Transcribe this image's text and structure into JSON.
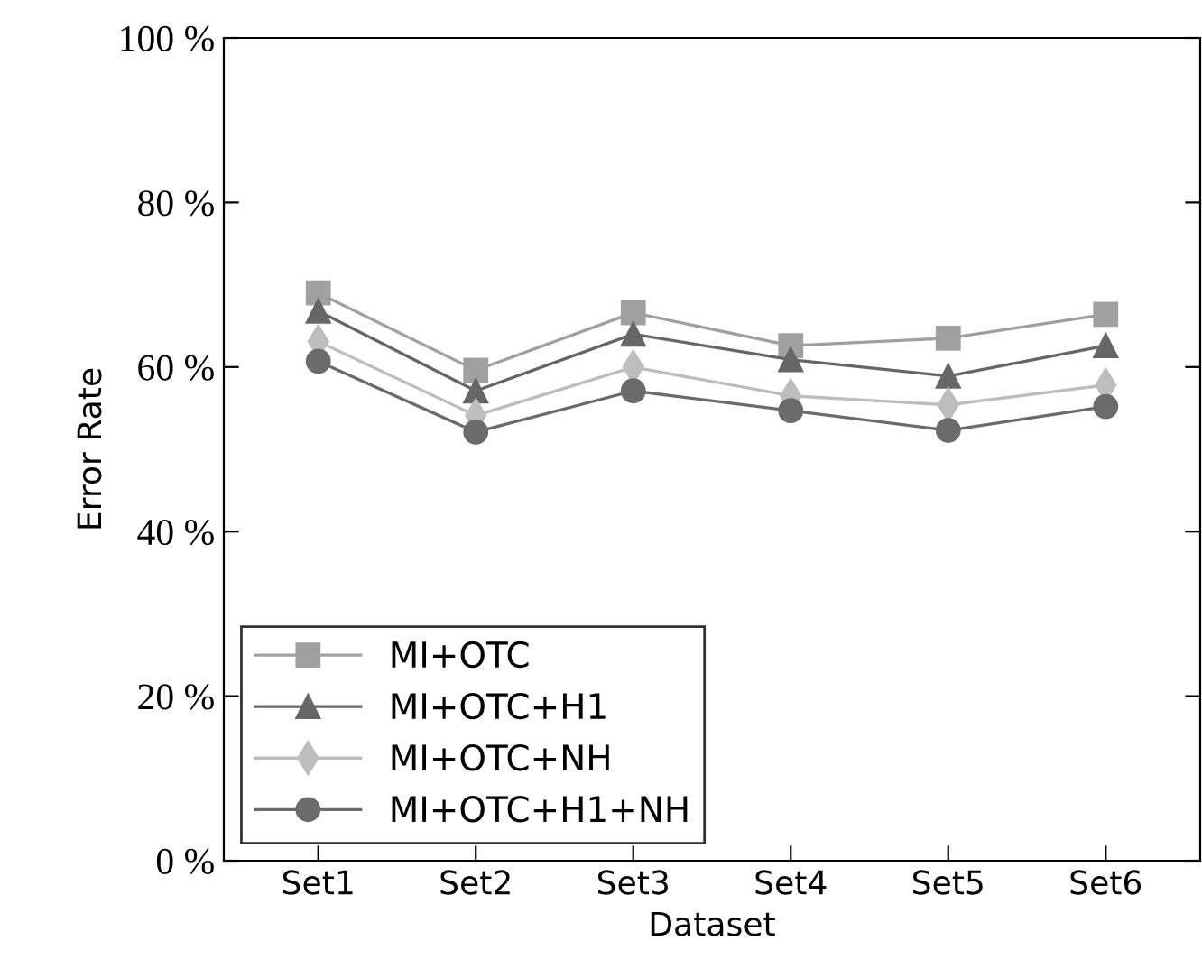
{
  "chart_data": {
    "type": "line",
    "xlabel": "Dataset",
    "ylabel": "Error Rate",
    "categories": [
      "Set1",
      "Set2",
      "Set3",
      "Set4",
      "Set5",
      "Set6"
    ],
    "series": [
      {
        "name": "MI+OTC",
        "color": "#a0a0a0",
        "marker": "square",
        "values": [
          69.0,
          59.6,
          66.6,
          62.6,
          63.5,
          66.4
        ]
      },
      {
        "name": "MI+OTC+H1",
        "color": "#666666",
        "marker": "triangle",
        "values": [
          66.8,
          57.1,
          64.0,
          60.9,
          58.9,
          62.6
        ]
      },
      {
        "name": "MI+OTC+NH",
        "color": "#bdbdbd",
        "marker": "diamond",
        "values": [
          63.1,
          54.1,
          60.0,
          56.5,
          55.4,
          57.8
        ]
      },
      {
        "name": "MI+OTC+H1+NH",
        "color": "#6b6b6b",
        "marker": "circle",
        "values": [
          60.7,
          52.1,
          57.1,
          54.7,
          52.3,
          55.2
        ]
      }
    ],
    "ylim": [
      0,
      100
    ],
    "yticks": [
      {
        "value": 0,
        "label": "0 %"
      },
      {
        "value": 20,
        "label": "20 %"
      },
      {
        "value": 40,
        "label": "40 %"
      },
      {
        "value": 60,
        "label": "60 %"
      },
      {
        "value": 80,
        "label": "80 %"
      },
      {
        "value": 100,
        "label": "100 %"
      }
    ],
    "legend": "bottom left",
    "grid": false,
    "line_style": "solid"
  }
}
